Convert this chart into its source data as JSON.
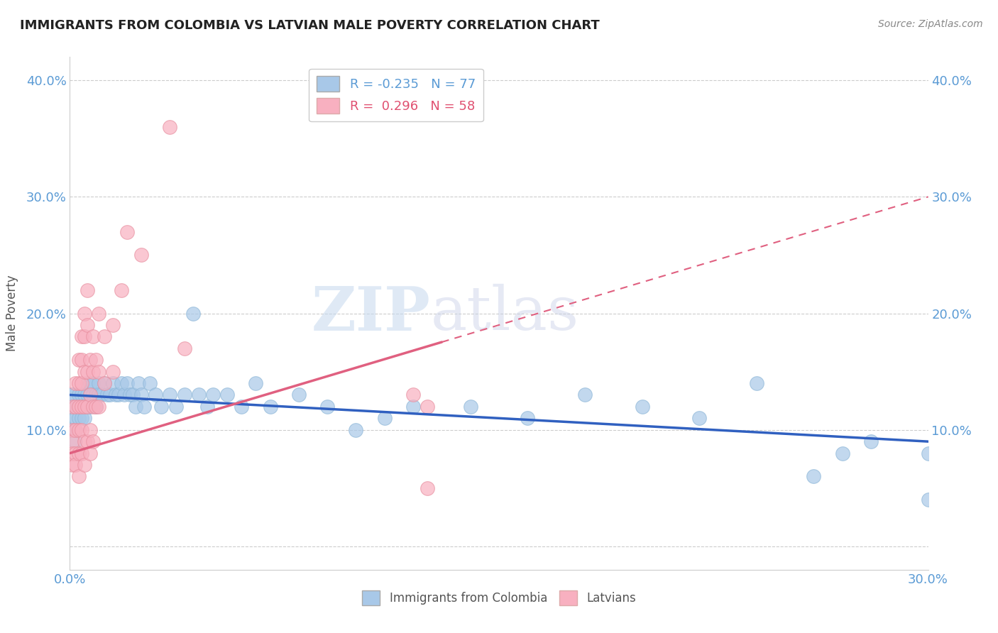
{
  "title": "IMMIGRANTS FROM COLOMBIA VS LATVIAN MALE POVERTY CORRELATION CHART",
  "source": "Source: ZipAtlas.com",
  "ylabel_label": "Male Poverty",
  "x_min": 0.0,
  "x_max": 0.3,
  "y_min": -0.02,
  "y_max": 0.42,
  "x_ticks": [
    0.0,
    0.05,
    0.1,
    0.15,
    0.2,
    0.25,
    0.3
  ],
  "x_tick_labels": [
    "0.0%",
    "",
    "",
    "",
    "",
    "",
    "30.0%"
  ],
  "y_ticks": [
    0.0,
    0.1,
    0.2,
    0.3,
    0.4
  ],
  "y_tick_labels": [
    "",
    "10.0%",
    "20.0%",
    "30.0%",
    "40.0%"
  ],
  "grid_color": "#cccccc",
  "background_color": "#ffffff",
  "colombia_color": "#a8c8e8",
  "latvian_color": "#f8b0c0",
  "colombia_line_color": "#3060c0",
  "latvian_line_color": "#e06080",
  "R_colombia": -0.235,
  "N_colombia": 77,
  "R_latvian": 0.296,
  "N_latvian": 58,
  "watermark_zip": "ZIP",
  "watermark_atlas": "atlas",
  "colombia_scatter": [
    [
      0.001,
      0.13
    ],
    [
      0.001,
      0.12
    ],
    [
      0.001,
      0.11
    ],
    [
      0.001,
      0.1
    ],
    [
      0.001,
      0.13
    ],
    [
      0.002,
      0.12
    ],
    [
      0.002,
      0.11
    ],
    [
      0.002,
      0.1
    ],
    [
      0.002,
      0.09
    ],
    [
      0.003,
      0.13
    ],
    [
      0.003,
      0.12
    ],
    [
      0.003,
      0.11
    ],
    [
      0.003,
      0.12
    ],
    [
      0.004,
      0.13
    ],
    [
      0.004,
      0.12
    ],
    [
      0.004,
      0.11
    ],
    [
      0.005,
      0.13
    ],
    [
      0.005,
      0.12
    ],
    [
      0.005,
      0.11
    ],
    [
      0.006,
      0.14
    ],
    [
      0.006,
      0.13
    ],
    [
      0.006,
      0.12
    ],
    [
      0.007,
      0.14
    ],
    [
      0.007,
      0.13
    ],
    [
      0.007,
      0.12
    ],
    [
      0.008,
      0.14
    ],
    [
      0.008,
      0.13
    ],
    [
      0.009,
      0.13
    ],
    [
      0.009,
      0.12
    ],
    [
      0.01,
      0.14
    ],
    [
      0.01,
      0.13
    ],
    [
      0.011,
      0.13
    ],
    [
      0.012,
      0.14
    ],
    [
      0.013,
      0.13
    ],
    [
      0.014,
      0.13
    ],
    [
      0.015,
      0.14
    ],
    [
      0.016,
      0.13
    ],
    [
      0.017,
      0.13
    ],
    [
      0.018,
      0.14
    ],
    [
      0.019,
      0.13
    ],
    [
      0.02,
      0.14
    ],
    [
      0.021,
      0.13
    ],
    [
      0.022,
      0.13
    ],
    [
      0.023,
      0.12
    ],
    [
      0.024,
      0.14
    ],
    [
      0.025,
      0.13
    ],
    [
      0.026,
      0.12
    ],
    [
      0.028,
      0.14
    ],
    [
      0.03,
      0.13
    ],
    [
      0.032,
      0.12
    ],
    [
      0.035,
      0.13
    ],
    [
      0.037,
      0.12
    ],
    [
      0.04,
      0.13
    ],
    [
      0.043,
      0.2
    ],
    [
      0.045,
      0.13
    ],
    [
      0.048,
      0.12
    ],
    [
      0.05,
      0.13
    ],
    [
      0.055,
      0.13
    ],
    [
      0.06,
      0.12
    ],
    [
      0.065,
      0.14
    ],
    [
      0.07,
      0.12
    ],
    [
      0.08,
      0.13
    ],
    [
      0.09,
      0.12
    ],
    [
      0.1,
      0.1
    ],
    [
      0.11,
      0.11
    ],
    [
      0.12,
      0.12
    ],
    [
      0.14,
      0.12
    ],
    [
      0.16,
      0.11
    ],
    [
      0.18,
      0.13
    ],
    [
      0.2,
      0.12
    ],
    [
      0.22,
      0.11
    ],
    [
      0.24,
      0.14
    ],
    [
      0.26,
      0.06
    ],
    [
      0.27,
      0.08
    ],
    [
      0.28,
      0.09
    ],
    [
      0.3,
      0.08
    ],
    [
      0.3,
      0.04
    ]
  ],
  "latvian_scatter": [
    [
      0.001,
      0.12
    ],
    [
      0.001,
      0.1
    ],
    [
      0.001,
      0.09
    ],
    [
      0.001,
      0.07
    ],
    [
      0.001,
      0.08
    ],
    [
      0.002,
      0.14
    ],
    [
      0.002,
      0.12
    ],
    [
      0.002,
      0.1
    ],
    [
      0.002,
      0.08
    ],
    [
      0.002,
      0.07
    ],
    [
      0.003,
      0.16
    ],
    [
      0.003,
      0.14
    ],
    [
      0.003,
      0.12
    ],
    [
      0.003,
      0.1
    ],
    [
      0.003,
      0.08
    ],
    [
      0.003,
      0.06
    ],
    [
      0.004,
      0.18
    ],
    [
      0.004,
      0.16
    ],
    [
      0.004,
      0.14
    ],
    [
      0.004,
      0.12
    ],
    [
      0.004,
      0.1
    ],
    [
      0.004,
      0.08
    ],
    [
      0.005,
      0.2
    ],
    [
      0.005,
      0.18
    ],
    [
      0.005,
      0.15
    ],
    [
      0.005,
      0.12
    ],
    [
      0.005,
      0.09
    ],
    [
      0.005,
      0.07
    ],
    [
      0.006,
      0.22
    ],
    [
      0.006,
      0.19
    ],
    [
      0.006,
      0.15
    ],
    [
      0.006,
      0.12
    ],
    [
      0.006,
      0.09
    ],
    [
      0.007,
      0.16
    ],
    [
      0.007,
      0.13
    ],
    [
      0.007,
      0.1
    ],
    [
      0.007,
      0.08
    ],
    [
      0.008,
      0.18
    ],
    [
      0.008,
      0.15
    ],
    [
      0.008,
      0.12
    ],
    [
      0.008,
      0.09
    ],
    [
      0.009,
      0.16
    ],
    [
      0.009,
      0.12
    ],
    [
      0.01,
      0.2
    ],
    [
      0.01,
      0.15
    ],
    [
      0.01,
      0.12
    ],
    [
      0.012,
      0.18
    ],
    [
      0.012,
      0.14
    ],
    [
      0.015,
      0.19
    ],
    [
      0.015,
      0.15
    ],
    [
      0.018,
      0.22
    ],
    [
      0.02,
      0.27
    ],
    [
      0.025,
      0.25
    ],
    [
      0.035,
      0.36
    ],
    [
      0.04,
      0.17
    ],
    [
      0.12,
      0.13
    ],
    [
      0.125,
      0.12
    ],
    [
      0.125,
      0.05
    ]
  ]
}
